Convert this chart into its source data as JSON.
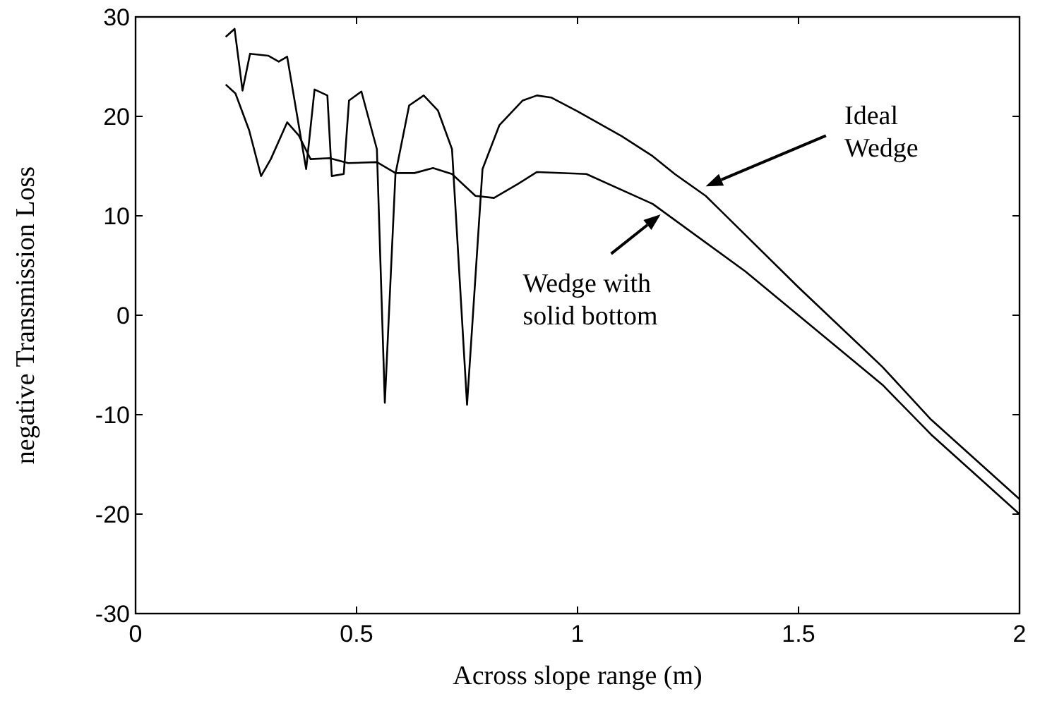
{
  "chart_data": {
    "type": "line",
    "xlabel": "Across slope range (m)",
    "ylabel": "negative Transmission Loss",
    "xlim": [
      0,
      2
    ],
    "xticks": [
      0,
      0.5,
      1,
      1.5,
      2
    ],
    "ylim": [
      -30,
      30
    ],
    "yticks": [
      -30,
      -20,
      -10,
      0,
      10,
      20,
      30
    ],
    "grid": false,
    "marker": "none",
    "line_style": "solid",
    "series": [
      {
        "color": "#000000",
        "x": [
          0.204,
          0.224,
          0.242,
          0.259,
          0.3,
          0.324,
          0.343,
          0.386,
          0.405,
          0.434,
          0.444,
          0.471,
          0.483,
          0.511,
          0.546,
          0.564,
          0.588,
          0.619,
          0.652,
          0.684,
          0.716,
          0.75,
          0.785,
          0.823,
          0.876,
          0.908,
          0.94,
          1.0,
          1.1,
          1.17,
          1.22,
          1.29,
          1.5,
          1.69,
          1.8,
          2.0
        ],
        "values": [
          28.0,
          28.8,
          22.6,
          26.3,
          26.1,
          25.5,
          26.0,
          14.7,
          22.7,
          22.1,
          14.0,
          14.2,
          21.6,
          22.5,
          16.7,
          -8.8,
          14.2,
          21.1,
          22.1,
          20.6,
          16.7,
          -9.0,
          14.7,
          19.1,
          21.6,
          22.1,
          21.9,
          20.5,
          18.0,
          16.0,
          14.2,
          12.0,
          2.8,
          -5.2,
          -10.5,
          -18.5
        ]
      },
      {
        "color": "#000000",
        "x": [
          0.204,
          0.226,
          0.257,
          0.284,
          0.306,
          0.343,
          0.369,
          0.396,
          0.439,
          0.481,
          0.546,
          0.588,
          0.631,
          0.673,
          0.716,
          0.769,
          0.811,
          0.865,
          0.908,
          1.02,
          1.17,
          1.38,
          1.69,
          1.8,
          2.0
        ],
        "values": [
          23.2,
          22.3,
          18.6,
          14.0,
          15.7,
          19.4,
          18.1,
          15.7,
          15.8,
          15.3,
          15.4,
          14.3,
          14.3,
          14.8,
          14.2,
          12.0,
          11.8,
          13.2,
          14.4,
          14.2,
          11.2,
          4.4,
          -7.0,
          -12.0,
          -20.0
        ]
      }
    ],
    "annotations": [
      "Ideal Wedge",
      "Wedge with solid bottom"
    ]
  }
}
